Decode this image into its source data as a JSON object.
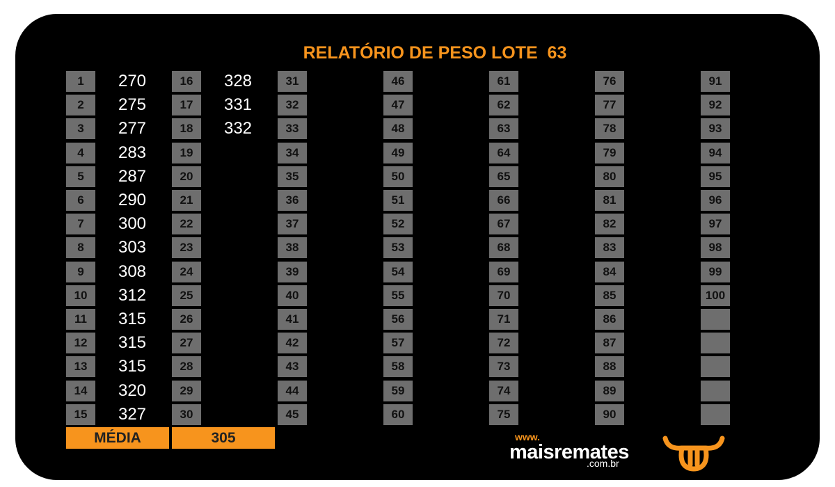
{
  "report": {
    "title": "RELATÓRIO DE PESO LOTE  63",
    "numbers": [
      1,
      2,
      3,
      4,
      5,
      6,
      7,
      8,
      9,
      10,
      11,
      12,
      13,
      14,
      15,
      16,
      17,
      18,
      19,
      20,
      21,
      22,
      23,
      24,
      25,
      26,
      27,
      28,
      29,
      30,
      31,
      32,
      33,
      34,
      35,
      36,
      37,
      38,
      39,
      40,
      41,
      42,
      43,
      44,
      45,
      46,
      47,
      48,
      49,
      50,
      51,
      52,
      53,
      54,
      55,
      56,
      57,
      58,
      59,
      60,
      61,
      62,
      63,
      64,
      65,
      66,
      67,
      68,
      69,
      70,
      71,
      72,
      73,
      74,
      75,
      76,
      77,
      78,
      79,
      80,
      81,
      82,
      83,
      84,
      85,
      86,
      87,
      88,
      89,
      90,
      91,
      92,
      93,
      94,
      95,
      96,
      97,
      98,
      99,
      100
    ],
    "weights": [
      270,
      275,
      277,
      283,
      287,
      290,
      300,
      303,
      308,
      312,
      315,
      315,
      315,
      320,
      327,
      328,
      331,
      332
    ],
    "average_label": "MÉDIA",
    "average": 305
  },
  "logo": {
    "prefix": "www.",
    "name": "maisremates",
    "suffix": ".com.br"
  }
}
